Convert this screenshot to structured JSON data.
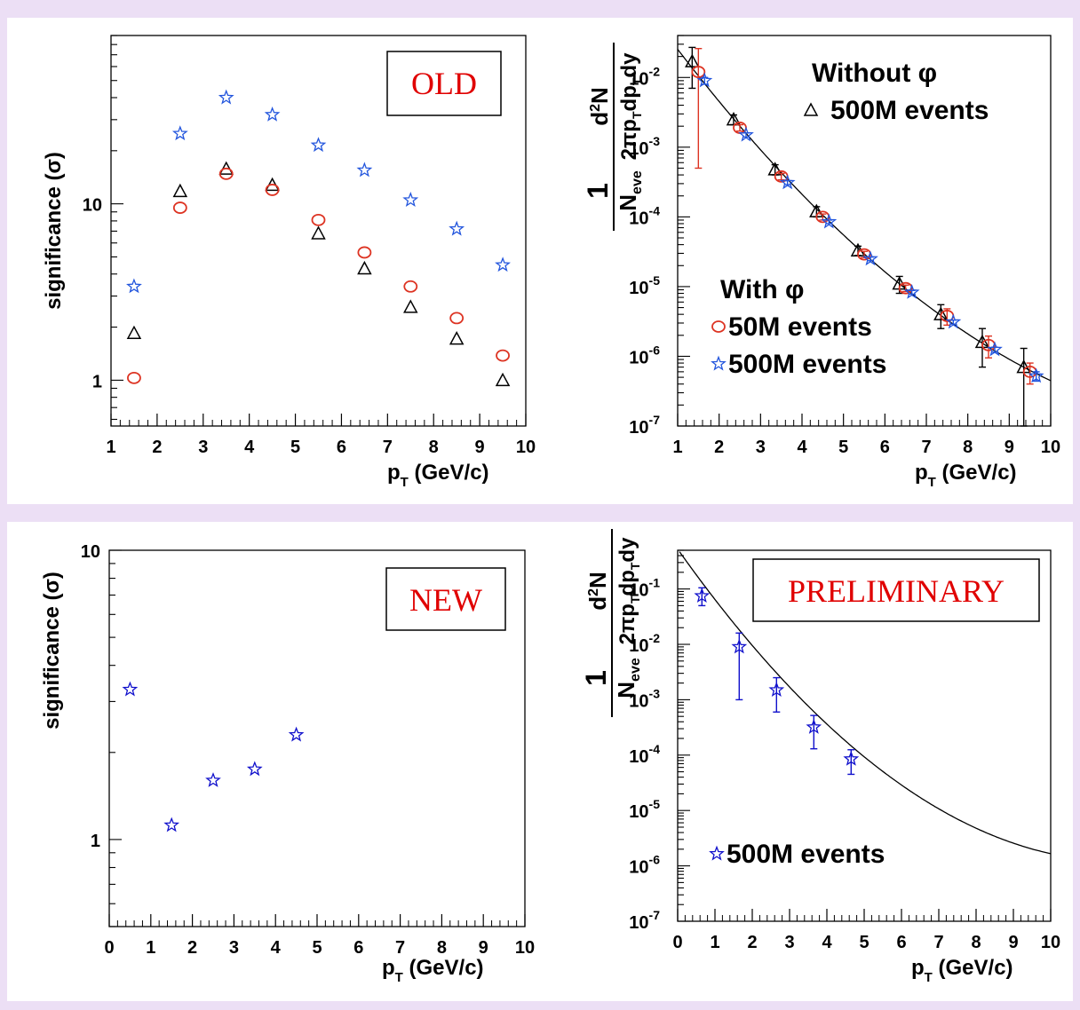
{
  "colors": {
    "background": "#ecdff5",
    "old_circle": "#dd3322",
    "old_star": "#2255dd",
    "old_triangle": "#000000",
    "new_star": "#1010cc",
    "label_text": "#e00000"
  },
  "chart_data": [
    {
      "id": "old-significance",
      "type": "scatter",
      "yscale": "log",
      "ylabel": "significance (σ)",
      "xlabel": "p_T (GeV/c)",
      "xlim": [
        1,
        10
      ],
      "ylim": [
        0.55,
        90
      ],
      "x_ticks": [
        "1",
        "2",
        "3",
        "4",
        "5",
        "6",
        "7",
        "8",
        "9",
        "10"
      ],
      "y_ticks": [
        "1",
        "10"
      ],
      "box_label": "OLD",
      "series": [
        {
          "marker": "triangle",
          "color": "#000000",
          "x": [
            1.5,
            2.5,
            3.5,
            4.5,
            5.5,
            6.5,
            7.5,
            8.5,
            9.5
          ],
          "y": [
            1.85,
            11.8,
            15.8,
            12.8,
            6.8,
            4.3,
            2.6,
            1.72,
            1.0
          ]
        },
        {
          "marker": "circle",
          "color": "#dd3322",
          "x": [
            1.5,
            2.5,
            3.5,
            4.5,
            5.5,
            6.5,
            7.5,
            8.5,
            9.5
          ],
          "y": [
            1.03,
            9.5,
            14.8,
            12.0,
            8.1,
            5.3,
            3.4,
            2.25,
            1.38
          ]
        },
        {
          "marker": "star",
          "color": "#2255dd",
          "x": [
            1.5,
            2.5,
            3.5,
            4.5,
            5.5,
            6.5,
            7.5,
            8.5,
            9.5
          ],
          "y": [
            3.4,
            25.0,
            40.0,
            32.0,
            21.5,
            15.5,
            10.5,
            7.2,
            4.5
          ]
        }
      ]
    },
    {
      "id": "old-spectrum",
      "type": "scatter",
      "yscale": "log",
      "xlabel": "p_T (GeV/c)",
      "xlim": [
        1,
        10
      ],
      "ylim": [
        1e-07,
        0.04
      ],
      "x_ticks": [
        "1",
        "2",
        "3",
        "4",
        "5",
        "6",
        "7",
        "8",
        "9",
        "10"
      ],
      "y_ticks": [
        "10-7",
        "10-6",
        "10-5",
        "10-4",
        "10-3",
        "10-2"
      ],
      "legend": {
        "header_without": "Without φ",
        "triangle_label": "500M events",
        "header_with": "With φ",
        "circle_label": "50M events",
        "star_label": "500M events"
      },
      "fit_curve": true,
      "series": [
        {
          "marker": "triangle",
          "color": "#000000",
          "x": [
            1.35,
            2.35,
            3.35,
            4.35,
            5.35,
            6.35,
            7.35,
            8.35,
            9.35
          ],
          "y": [
            0.017,
            0.0025,
            0.00048,
            0.00012,
            3.3e-05,
            1.1e-05,
            4e-06,
            1.6e-06,
            7e-07
          ],
          "err_lo": [
            0.01,
            0.0004,
            8e-05,
            2e-05,
            5e-06,
            3e-06,
            1.5e-06,
            9e-07,
            6e-07
          ],
          "err_hi": [
            0.01,
            0.0004,
            8e-05,
            2e-05,
            5e-06,
            3e-06,
            1.5e-06,
            9e-07,
            6e-07
          ]
        },
        {
          "marker": "circle",
          "color": "#dd3322",
          "x": [
            1.5,
            2.5,
            3.5,
            4.5,
            5.5,
            6.5,
            7.5,
            8.5,
            9.5
          ],
          "y": [
            0.012,
            0.0019,
            0.00038,
            0.0001,
            2.9e-05,
            9.5e-06,
            3.8e-06,
            1.45e-06,
            6e-07
          ],
          "err_lo": [
            0.0115,
            0.0002,
            4e-05,
            1e-05,
            3e-06,
            1e-06,
            1e-06,
            5e-07,
            2e-07
          ],
          "err_hi": [
            0.014,
            0.0002,
            4e-05,
            1e-05,
            3e-06,
            1e-06,
            1e-06,
            5e-07,
            2e-07
          ]
        },
        {
          "marker": "star",
          "color": "#2255dd",
          "x": [
            1.65,
            2.65,
            3.65,
            4.65,
            5.65,
            6.65,
            7.65,
            8.65,
            9.65
          ],
          "y": [
            0.009,
            0.0015,
            0.00031,
            8.5e-05,
            2.5e-05,
            8.3e-06,
            3.1e-06,
            1.25e-06,
            5.2e-07
          ],
          "err_lo": [
            0.001,
            0.0001,
            2e-05,
            5e-06,
            1.5e-06,
            5e-07,
            2e-07,
            1e-07,
            8e-08
          ],
          "err_hi": [
            0.001,
            0.0001,
            2e-05,
            5e-06,
            1.5e-06,
            5e-07,
            2e-07,
            1e-07,
            8e-08
          ]
        }
      ]
    },
    {
      "id": "new-significance",
      "type": "scatter",
      "yscale": "log",
      "ylabel": "significance (σ)",
      "xlabel": "p_T (GeV/c)",
      "xlim": [
        0,
        10
      ],
      "ylim": [
        0.5,
        10
      ],
      "x_ticks": [
        "0",
        "1",
        "2",
        "3",
        "4",
        "5",
        "6",
        "7",
        "8",
        "9",
        "10"
      ],
      "y_ticks": [
        "1",
        "10"
      ],
      "box_label": "NEW",
      "series": [
        {
          "marker": "star",
          "color": "#1010cc",
          "x": [
            0.5,
            1.5,
            2.5,
            3.5,
            4.5
          ],
          "y": [
            3.3,
            1.12,
            1.6,
            1.75,
            2.3
          ]
        }
      ]
    },
    {
      "id": "new-spectrum",
      "type": "scatter",
      "yscale": "log",
      "xlabel": "p_T (GeV/c)",
      "xlim": [
        0,
        10
      ],
      "ylim": [
        1e-07,
        0.5
      ],
      "x_ticks": [
        "0",
        "1",
        "2",
        "3",
        "4",
        "5",
        "6",
        "7",
        "8",
        "9",
        "10"
      ],
      "y_ticks": [
        "10-7",
        "10-6",
        "10-5",
        "10-4",
        "10-3",
        "10-2",
        "10-1"
      ],
      "box_label": "PRELIMINARY",
      "legend": {
        "star_label": "500M events"
      },
      "fit_curve": true,
      "series": [
        {
          "marker": "star",
          "color": "#1010cc",
          "x": [
            0.65,
            1.65,
            2.65,
            3.65,
            4.65
          ],
          "y": [
            0.075,
            0.009,
            0.0015,
            0.00032,
            8.5e-05
          ],
          "err_lo": [
            0.025,
            0.008,
            0.0009,
            0.00019,
            4e-05
          ],
          "err_hi": [
            0.03,
            0.007,
            0.001,
            0.0002,
            4e-05
          ]
        }
      ]
    }
  ]
}
